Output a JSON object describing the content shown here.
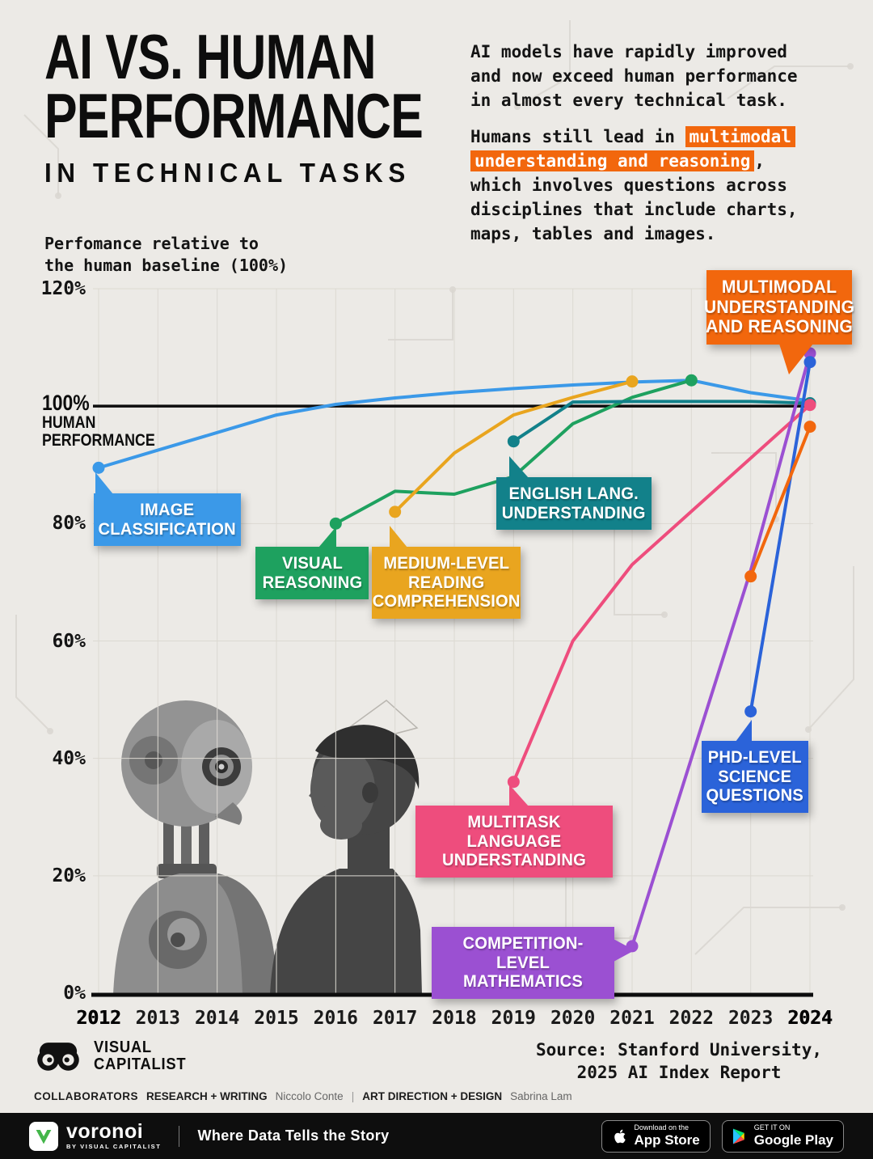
{
  "header": {
    "title_line1": "AI VS. HUMAN",
    "title_line2": "PERFORMANCE",
    "title_line3": "IN TECHNICAL TASKS",
    "intro_p1": "AI models have rapidly improved and now exceed human performance in almost every technical task.",
    "intro_p2_pre": "Humans still lead in ",
    "intro_p2_highlight": "multimodal understanding and reasoning",
    "intro_p2_post": ", which involves questions across disciplines that include charts, maps, tables and images."
  },
  "axis_note": {
    "line1": "Perfomance relative to",
    "line2": "the human baseline (100%)"
  },
  "baseline": {
    "pct": "100%",
    "line1": "HUMAN",
    "line2": "PERFORMANCE"
  },
  "chart_data": {
    "type": "line",
    "title": "AI vs. Human Performance in Technical Tasks",
    "ylabel": "Performance relative to the human baseline (100%)",
    "ylim": [
      0,
      120
    ],
    "baseline_value": 100,
    "x_ticks": [
      "2012",
      "2013",
      "2014",
      "2015",
      "2016",
      "2017",
      "2018",
      "2019",
      "2020",
      "2021",
      "2022",
      "2023",
      "2024"
    ],
    "y_ticks": [
      {
        "value": 0,
        "label": "0%"
      },
      {
        "value": 20,
        "label": "20%"
      },
      {
        "value": 40,
        "label": "40%"
      },
      {
        "value": 60,
        "label": "60%"
      },
      {
        "value": 80,
        "label": "80%"
      },
      {
        "value": 120,
        "label": "120%"
      }
    ],
    "series": [
      {
        "id": "image-classification",
        "label": "IMAGE CLASSIFICATION",
        "color": "#3b99e8",
        "start_dot": true,
        "end_dot": false,
        "points": [
          [
            2012,
            89.5
          ],
          [
            2013,
            92.5
          ],
          [
            2014,
            95.5
          ],
          [
            2015,
            98.5
          ],
          [
            2016,
            100.3
          ],
          [
            2017,
            101.4
          ],
          [
            2018,
            102.3
          ],
          [
            2019,
            103.0
          ],
          [
            2020,
            103.6
          ],
          [
            2021,
            104.1
          ],
          [
            2022,
            104.4
          ],
          [
            2023,
            102.3
          ],
          [
            2024,
            100.9
          ]
        ]
      },
      {
        "id": "visual-reasoning",
        "label": "VISUAL REASONING",
        "color": "#1ea15f",
        "start_dot": true,
        "end_dot": true,
        "points": [
          [
            2016,
            80
          ],
          [
            2017,
            85.5
          ],
          [
            2018,
            85
          ],
          [
            2019,
            88
          ],
          [
            2020,
            97
          ],
          [
            2021,
            101.5
          ],
          [
            2022,
            104.4
          ]
        ]
      },
      {
        "id": "reading-comprehension",
        "label": "MEDIUM-LEVEL READING COMPREHENSION",
        "color": "#e9a51f",
        "start_dot": true,
        "end_dot": true,
        "points": [
          [
            2017,
            82
          ],
          [
            2018,
            92
          ],
          [
            2019,
            98.5
          ],
          [
            2020,
            101.5
          ],
          [
            2021,
            104.2
          ]
        ]
      },
      {
        "id": "english-understanding",
        "label": "ENGLISH LANG. UNDERSTANDING",
        "color": "#12818a",
        "start_dot": true,
        "end_dot": true,
        "points": [
          [
            2019,
            94
          ],
          [
            2020,
            100.7
          ],
          [
            2021,
            100.8
          ],
          [
            2022,
            100.8
          ],
          [
            2023,
            100.8
          ],
          [
            2024,
            100.5
          ]
        ]
      },
      {
        "id": "multitask-language",
        "label": "MULTITASK LANGUAGE UNDERSTANDING",
        "color": "#ee4d7d",
        "start_dot": true,
        "end_dot": true,
        "points": [
          [
            2019,
            36
          ],
          [
            2020,
            60
          ],
          [
            2021,
            73
          ],
          [
            2024,
            100.2
          ]
        ]
      },
      {
        "id": "competition-math",
        "label": "COMPETITION-LEVEL MATHEMATICS",
        "color": "#9b50d2",
        "start_dot": true,
        "end_dot": true,
        "points": [
          [
            2021,
            8
          ],
          [
            2023,
            72
          ],
          [
            2024,
            109
          ]
        ]
      },
      {
        "id": "phd-science",
        "label": "PHD-LEVEL SCIENCE QUESTIONS",
        "color": "#2b63d9",
        "start_dot": true,
        "end_dot": true,
        "points": [
          [
            2023,
            48
          ],
          [
            2024,
            107.5
          ]
        ]
      },
      {
        "id": "multimodal",
        "label": "MULTIMODAL UNDERSTANDING AND REASONING",
        "color": "#f2670d",
        "start_dot": true,
        "end_dot": true,
        "points": [
          [
            2023,
            71
          ],
          [
            2024,
            96.5
          ]
        ]
      }
    ]
  },
  "footer": {
    "logo_line1": "VISUAL",
    "logo_line2": "CAPITALIST",
    "source_line1": "Source: Stanford University,",
    "source_line2": "2025 AI Index Report",
    "collaborators_label": "COLLABORATORS",
    "credit1_label": "RESEARCH + WRITING",
    "credit1_name": "Niccolo Conte",
    "credit_divider": "|",
    "credit2_label": "ART DIRECTION + DESIGN",
    "credit2_name": "Sabrina Lam",
    "bar": {
      "brand": "voronoi",
      "brand_sub": "BY VISUAL CAPITALIST",
      "tagline": "Where Data Tells the Story",
      "appstore_top": "Download on the",
      "appstore_bottom": "App Store",
      "gplay_top": "GET IT ON",
      "gplay_bottom": "Google Play"
    }
  }
}
